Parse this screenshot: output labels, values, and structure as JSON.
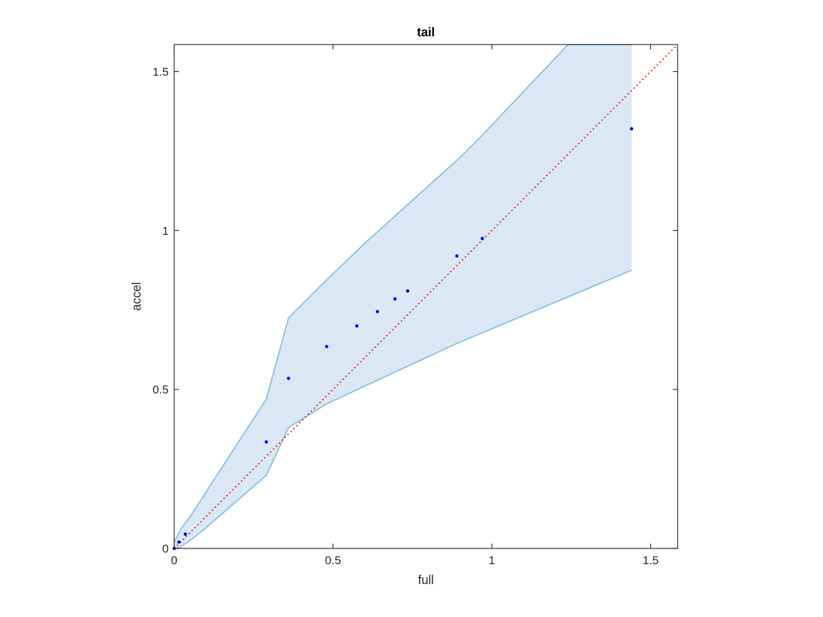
{
  "chart_data": {
    "type": "scatter",
    "title": "tail",
    "xlabel": "full",
    "ylabel": "accel",
    "xlim": [
      0,
      1.585
    ],
    "ylim": [
      0,
      1.585
    ],
    "xticks": [
      0,
      0.5,
      1,
      1.5
    ],
    "yticks": [
      0,
      0.5,
      1,
      1.5
    ],
    "xtick_labels": [
      "0",
      "0.5",
      "1",
      "1.5"
    ],
    "ytick_labels": [
      "0",
      "0.5",
      "1",
      "1.5"
    ],
    "grid": false,
    "band": {
      "color": "#d9e8f4",
      "edge_color": "#86bde0",
      "upper": [
        [
          0,
          0.02
        ],
        [
          0.01,
          0.04
        ],
        [
          0.02,
          0.06
        ],
        [
          0.035,
          0.08
        ],
        [
          0.05,
          0.1
        ],
        [
          0.29,
          0.47
        ],
        [
          0.36,
          0.725
        ],
        [
          0.48,
          0.845
        ],
        [
          0.6,
          0.96
        ],
        [
          0.9,
          1.23
        ],
        [
          0.97,
          1.3
        ],
        [
          1.24,
          1.585
        ],
        [
          1.44,
          1.585
        ]
      ],
      "lower": [
        [
          0,
          0
        ],
        [
          0.02,
          0.005
        ],
        [
          0.05,
          0.025
        ],
        [
          0.1,
          0.065
        ],
        [
          0.29,
          0.23
        ],
        [
          0.36,
          0.38
        ],
        [
          0.48,
          0.455
        ],
        [
          0.75,
          0.58
        ],
        [
          0.89,
          0.645
        ],
        [
          1.44,
          0.875
        ]
      ]
    },
    "points": {
      "color": "#0000ee",
      "x": [
        0,
        0.015,
        0.035,
        0.29,
        0.36,
        0.48,
        0.575,
        0.64,
        0.695,
        0.735,
        0.89,
        0.97,
        1.44
      ],
      "y": [
        0,
        0.02,
        0.045,
        0.335,
        0.535,
        0.635,
        0.7,
        0.745,
        0.785,
        0.81,
        0.92,
        0.975,
        1.32
      ]
    },
    "reference_line": {
      "color": "#ff0000",
      "style": "dotted",
      "x": [
        0,
        1.585
      ],
      "y": [
        0,
        1.585
      ]
    }
  }
}
